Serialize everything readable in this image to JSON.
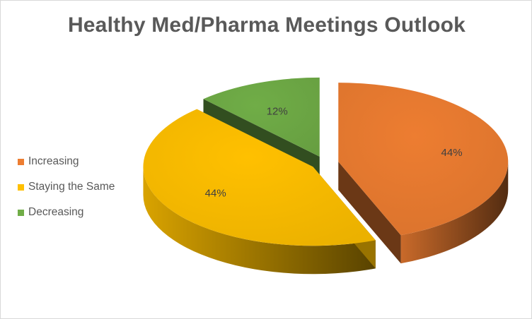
{
  "chart_data": {
    "type": "pie",
    "title": "Healthy Med/Pharma Meetings Outlook",
    "categories": [
      "Increasing",
      "Staying the Same",
      "Decreasing"
    ],
    "values": [
      44,
      44,
      12
    ],
    "labels": [
      "44%",
      "44%",
      "12%"
    ],
    "colors": [
      "#ED7D31",
      "#FFC000",
      "#70AD47"
    ],
    "style": "3d-exploded",
    "legend_position": "left"
  }
}
